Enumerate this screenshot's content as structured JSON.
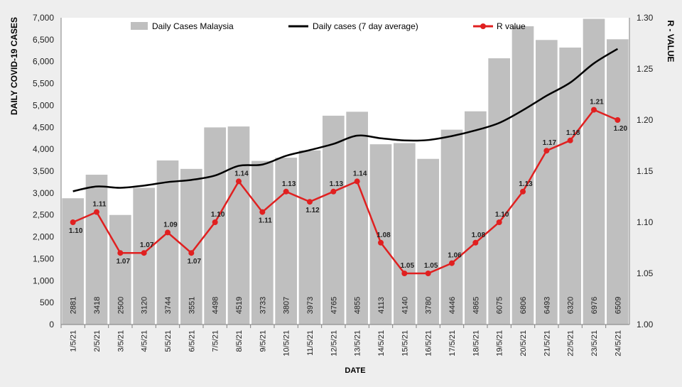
{
  "chart_data": {
    "type": "bar",
    "xlabel": "DATE",
    "ylabel": "DAILY COVID-19 CASES",
    "y2label": "R - VALUE",
    "categories": [
      "1/5/21",
      "2/5/21",
      "3/5/21",
      "4/5/21",
      "5/5/21",
      "6/5/21",
      "7/5/21",
      "8/5/21",
      "9/5/21",
      "10/5/21",
      "11/5/21",
      "12/5/21",
      "13/5/21",
      "14/5/21",
      "15/5/21",
      "16/5/21",
      "17/5/21",
      "18/5/21",
      "19/5/21",
      "20/5/21",
      "21/5/21",
      "22/5/21",
      "23/5/21",
      "24/5/21"
    ],
    "ylim": [
      0,
      7000
    ],
    "y2lim": [
      1.0,
      1.3
    ],
    "yticks": [
      "0",
      "500",
      "1,000",
      "1,500",
      "2,000",
      "2,500",
      "3,000",
      "3,500",
      "4,000",
      "4,500",
      "5,000",
      "5,500",
      "6,000",
      "6,500",
      "7,000"
    ],
    "y2ticks": [
      "1.00",
      "1.05",
      "1.10",
      "1.15",
      "1.20",
      "1.25",
      "1.30"
    ],
    "legend_position": "top",
    "grid": false,
    "series": [
      {
        "name": "Daily Cases Malaysia",
        "type": "bar",
        "color": "#bfbfbf",
        "values": [
          2881,
          3418,
          2500,
          3120,
          3744,
          3551,
          4498,
          4519,
          3733,
          3807,
          3973,
          4765,
          4855,
          4113,
          4140,
          3780,
          4446,
          4865,
          6075,
          6806,
          6493,
          6320,
          6976,
          6509
        ],
        "labels": [
          "2881",
          "3418",
          "2500",
          "3120",
          "3744",
          "3551",
          "4498",
          "4519",
          "3733",
          "3807",
          "3973",
          "4765",
          "4855",
          "4113",
          "4140",
          "3780",
          "4446",
          "4865",
          "6075",
          "6806",
          "6493",
          "6320",
          "6976",
          "6509"
        ]
      },
      {
        "name": "Daily cases (7 day average)",
        "type": "line",
        "color": "#000000",
        "values": [
          3040,
          3150,
          3120,
          3170,
          3250,
          3300,
          3400,
          3620,
          3650,
          3850,
          3980,
          4120,
          4310,
          4250,
          4200,
          4210,
          4300,
          4430,
          4600,
          4890,
          5220,
          5520,
          5960,
          6290
        ]
      },
      {
        "name": "R value",
        "type": "line",
        "axis": "right",
        "color": "#e02020",
        "values": [
          1.1,
          1.11,
          1.07,
          1.07,
          1.09,
          1.07,
          1.1,
          1.14,
          1.11,
          1.13,
          1.12,
          1.13,
          1.14,
          1.08,
          1.05,
          1.05,
          1.06,
          1.08,
          1.1,
          1.13,
          1.17,
          1.18,
          1.21,
          1.2
        ],
        "labels": [
          "1.10",
          "1.11",
          "1.07",
          "1.07",
          "1.09",
          "1.07",
          "1.10",
          "1.14",
          "1.11",
          "1.13",
          "1.12",
          "1.13",
          "1.14",
          "1.08",
          "1.05",
          "1.05",
          "1.06",
          "1.08",
          "1.10",
          "1.13",
          "1.17",
          "1.18",
          "1.21",
          "1.20"
        ]
      }
    ]
  }
}
